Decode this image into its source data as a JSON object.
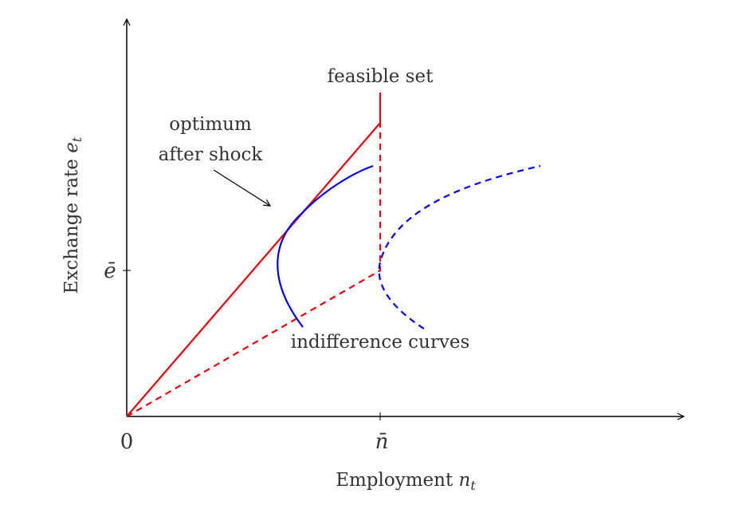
{
  "diagram": {
    "x_axis_label": "Employment",
    "x_axis_symbol": "n",
    "x_axis_subscript": "t",
    "y_axis_label": "Exchange rate",
    "y_axis_symbol": "e",
    "y_axis_subscript": "t",
    "origin_label": "0",
    "x_tick_label": "n̄",
    "y_tick_label": "ē",
    "feasible_set_label": "feasible set",
    "optimum_label_line1": "optimum",
    "optimum_label_line2": "after shock",
    "indifference_label": "indifference curves",
    "colors": {
      "axis": "#000000",
      "feasible_set": "#e8000b",
      "indifference": "#0000ee",
      "text": "#333333"
    }
  }
}
